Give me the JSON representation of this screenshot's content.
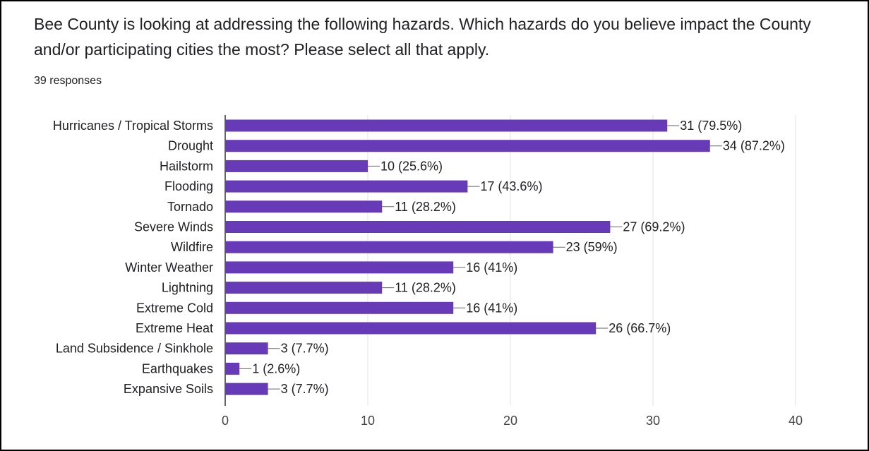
{
  "question": {
    "text": "Bee County is looking at addressing the following hazards. Which hazards do you believe impact the County and/or participating cities the most? Please select all that apply.",
    "responses": "39 responses"
  },
  "chart_data": {
    "type": "bar",
    "orientation": "horizontal",
    "categories": [
      "Hurricanes / Tropical Storms",
      "Drought",
      "Hailstorm",
      "Flooding",
      "Tornado",
      "Severe Winds",
      "Wildfire",
      "Winter Weather",
      "Lightning",
      "Extreme Cold",
      "Extreme Heat",
      "Land Subsidence / Sinkhole",
      "Earthquakes",
      "Expansive Soils"
    ],
    "values": [
      31,
      34,
      10,
      17,
      11,
      27,
      23,
      16,
      11,
      16,
      26,
      3,
      1,
      3
    ],
    "data_labels": [
      "31 (79.5%)",
      "34 (87.2%)",
      "10 (25.6%)",
      "17 (43.6%)",
      "11 (28.2%)",
      "27 (69.2%)",
      "23 (59%)",
      "16 (41%)",
      "11 (28.2%)",
      "16 (41%)",
      "26 (66.7%)",
      "3 (7.7%)",
      "1 (2.6%)",
      "3 (7.7%)"
    ],
    "xlim": [
      0,
      40
    ],
    "xticks": [
      "0",
      "10",
      "20",
      "30",
      "40"
    ],
    "grid": true,
    "bar_color": "#673ab7"
  }
}
